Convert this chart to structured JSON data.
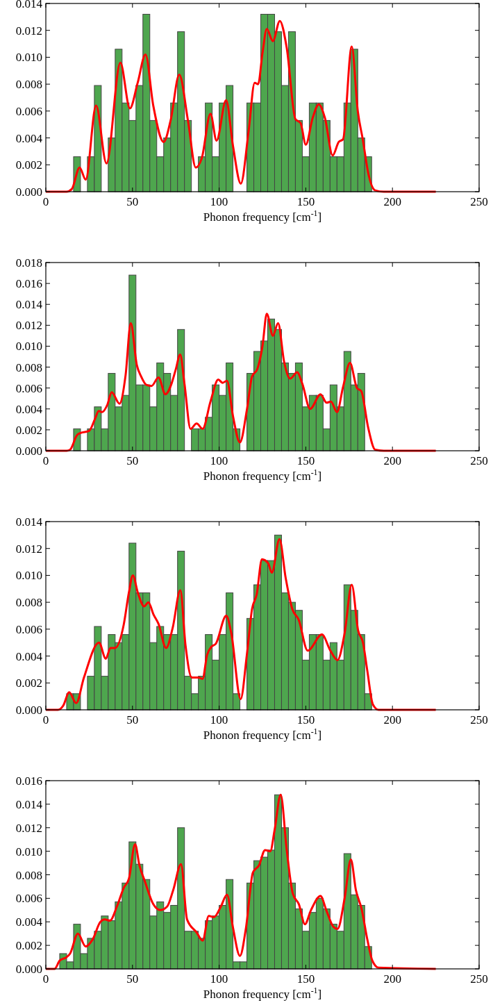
{
  "chart_data": [
    {
      "type": "histogram",
      "xlabel": "Phonon frequency [cm$^{-1}$]",
      "xlim": [
        0,
        250
      ],
      "xticks": [
        0,
        50,
        100,
        150,
        200,
        250
      ],
      "ylim": [
        0,
        0.014
      ],
      "yticks": [
        {
          "value": 0,
          "label": "0.000"
        },
        {
          "value": 0.002,
          "label": "0.002"
        },
        {
          "value": 0.004,
          "label": "0.004"
        },
        {
          "value": 0.006,
          "label": "0.006"
        },
        {
          "value": 0.008,
          "label": "0.008"
        },
        {
          "value": 0.01,
          "label": "0.010"
        },
        {
          "value": 0.012,
          "label": "0.012"
        },
        {
          "value": 0.014,
          "label": "0.014"
        }
      ],
      "series": [
        {
          "color": "#4ea64e",
          "bins": [
            16,
            20,
            24,
            28,
            32,
            36,
            40,
            44,
            48,
            52,
            56,
            60,
            64,
            68,
            72,
            76,
            80,
            84,
            88,
            92,
            96,
            100,
            104,
            108,
            112,
            116,
            120,
            124,
            128,
            132,
            136,
            140,
            144,
            148,
            152,
            156,
            160,
            164,
            168,
            172,
            176,
            180,
            184,
            188
          ],
          "values": [
            0.0026,
            0,
            0.0026,
            0.0079,
            0,
            0.004,
            0.0106,
            0.0066,
            0.0053,
            0.0079,
            0.0132,
            0.0053,
            0.0026,
            0.004,
            0.0066,
            0.0119,
            0.0053,
            0,
            0.0026,
            0.0066,
            0.0026,
            0.0066,
            0.0079,
            0,
            0,
            0.0066,
            0.0066,
            0.0132,
            0.0132,
            0.0119,
            0.0079,
            0.0119,
            0.0053,
            0.0026,
            0.0066,
            0.0066,
            0.0053,
            0.0026,
            0.0026,
            0.0066,
            0.0106,
            0.004,
            0.0026
          ]
        },
        {
          "type": "line",
          "color": "#ff0000",
          "x": [
            0,
            12,
            15,
            19.5,
            23,
            29,
            35,
            43,
            48.5,
            53,
            57.5,
            62,
            68,
            72,
            77,
            82,
            86.5,
            90,
            95,
            98.5,
            104,
            108,
            112.5,
            117,
            120.5,
            122.5,
            125,
            127.5,
            131,
            135,
            139,
            144,
            147,
            150,
            154,
            157.5,
            161,
            165.5,
            169,
            171.5,
            176.5,
            180,
            183,
            186,
            190,
            195,
            225
          ],
          "values": [
            0,
            0,
            0.0002,
            0.0018,
            0.0009,
            0.0064,
            0.0021,
            0.0096,
            0.0062,
            0.0081,
            0.0102,
            0.0064,
            0.0037,
            0.0053,
            0.0087,
            0.0053,
            0.0018,
            0.0025,
            0.0058,
            0.0038,
            0.0068,
            0.0034,
            0.0006,
            0.0045,
            0.0081,
            0.008,
            0.0103,
            0.0121,
            0.0112,
            0.0127,
            0.0107,
            0.0054,
            0.0051,
            0.0035,
            0.0055,
            0.0065,
            0.0055,
            0.0027,
            0.0037,
            0.0039,
            0.0108,
            0.006,
            0.0038,
            0.0014,
            0.0001,
            0,
            0
          ]
        }
      ]
    },
    {
      "type": "histogram",
      "xlabel": "Phonon frequency [cm$^{-1}$]",
      "xlim": [
        0,
        250
      ],
      "xticks": [
        0,
        50,
        100,
        150,
        200,
        250
      ],
      "ylim": [
        0,
        0.018
      ],
      "yticks": [
        {
          "value": 0,
          "label": "0.000"
        },
        {
          "value": 0.002,
          "label": "0.002"
        },
        {
          "value": 0.004,
          "label": "0.004"
        },
        {
          "value": 0.006,
          "label": "0.006"
        },
        {
          "value": 0.008,
          "label": "0.008"
        },
        {
          "value": 0.01,
          "label": "0.010"
        },
        {
          "value": 0.012,
          "label": "0.012"
        },
        {
          "value": 0.014,
          "label": "0.014"
        },
        {
          "value": 0.016,
          "label": "0.016"
        },
        {
          "value": 0.018,
          "label": "0.018"
        }
      ],
      "series": [
        {
          "color": "#4ea64e",
          "bins": [
            16,
            20,
            24,
            28,
            32,
            36,
            40,
            44,
            48,
            52,
            56,
            60,
            64,
            68,
            72,
            76,
            80,
            84,
            88,
            92,
            96,
            100,
            104,
            108,
            112,
            116,
            120,
            124,
            128,
            132,
            136,
            140,
            144,
            148,
            152,
            156,
            160,
            164,
            168,
            172,
            176,
            180,
            184
          ],
          "values": [
            0.0021,
            0,
            0.0021,
            0.0042,
            0.0021,
            0.0074,
            0.0042,
            0.0053,
            0.0168,
            0.0063,
            0.0063,
            0.0042,
            0.0084,
            0.0074,
            0.0053,
            0.0116,
            0,
            0.0021,
            0.0021,
            0.0032,
            0.0063,
            0.0053,
            0.0084,
            0.0021,
            0,
            0.0074,
            0.0095,
            0.0105,
            0.0126,
            0.0116,
            0.0084,
            0.0074,
            0.0084,
            0.0042,
            0.0053,
            0.0053,
            0.0021,
            0.0063,
            0.0042,
            0.0095,
            0.0063,
            0.0074
          ]
        },
        {
          "type": "line",
          "color": "#ff0000",
          "x": [
            0,
            12,
            14,
            18,
            20,
            25,
            28.5,
            30.5,
            32.5,
            35.5,
            38,
            42.5,
            46,
            49,
            52.5,
            55,
            58,
            61,
            65,
            69,
            72.5,
            75,
            77.5,
            80,
            83.5,
            87,
            90.5,
            95,
            99.5,
            102,
            104.5,
            108,
            112,
            116,
            119,
            122,
            125,
            127.5,
            131,
            134,
            137.5,
            141,
            145,
            148,
            152.5,
            158.5,
            162,
            164.5,
            168,
            171.5,
            175.5,
            179.5,
            182,
            186,
            190,
            195,
            225
          ],
          "values": [
            0,
            0,
            0.0001,
            0.0015,
            0.0017,
            0.0019,
            0.0031,
            0.0038,
            0.0037,
            0.0044,
            0.0056,
            0.0045,
            0.0072,
            0.0122,
            0.0082,
            0.0071,
            0.0063,
            0.0062,
            0.007,
            0.0054,
            0.0064,
            0.0078,
            0.0092,
            0.0064,
            0.0021,
            0.0026,
            0.0021,
            0.0047,
            0.0068,
            0.0065,
            0.0067,
            0.0033,
            0.0008,
            0.0039,
            0.0071,
            0.0078,
            0.01,
            0.0131,
            0.011,
            0.0122,
            0.0085,
            0.0069,
            0.0075,
            0.0064,
            0.004,
            0.0054,
            0.0046,
            0.0047,
            0.0037,
            0.0061,
            0.0084,
            0.006,
            0.0057,
            0.0022,
            0.0001,
            0,
            0
          ]
        }
      ]
    },
    {
      "type": "histogram",
      "xlabel": "Phonon frequency [cm$^{-1}$]",
      "xlim": [
        0,
        250
      ],
      "xticks": [
        0,
        50,
        100,
        150,
        200,
        250
      ],
      "ylim": [
        0,
        0.014
      ],
      "yticks": [
        {
          "value": 0,
          "label": "0.000"
        },
        {
          "value": 0.002,
          "label": "0.002"
        },
        {
          "value": 0.004,
          "label": "0.004"
        },
        {
          "value": 0.006,
          "label": "0.006"
        },
        {
          "value": 0.008,
          "label": "0.008"
        },
        {
          "value": 0.01,
          "label": "0.010"
        },
        {
          "value": 0.012,
          "label": "0.012"
        },
        {
          "value": 0.014,
          "label": "0.014"
        }
      ],
      "series": [
        {
          "color": "#4ea64e",
          "bins": [
            12,
            16,
            20,
            24,
            28,
            32,
            36,
            40,
            44,
            48,
            52,
            56,
            60,
            64,
            68,
            72,
            76,
            80,
            84,
            88,
            92,
            96,
            100,
            104,
            108,
            112,
            116,
            120,
            124,
            128,
            132,
            136,
            140,
            144,
            148,
            152,
            156,
            160,
            164,
            168,
            172,
            176,
            180,
            184,
            188
          ],
          "values": [
            0.0012,
            0.0012,
            0,
            0.0025,
            0.0062,
            0.0025,
            0.0056,
            0.005,
            0.0056,
            0.0124,
            0.0087,
            0.0087,
            0.005,
            0.0062,
            0.0056,
            0.0056,
            0.0118,
            0.0025,
            0.0012,
            0.0025,
            0.0056,
            0.0037,
            0.0056,
            0.0087,
            0.0012,
            0,
            0.0068,
            0.0093,
            0.0111,
            0.0111,
            0.013,
            0.0087,
            0.008,
            0.0074,
            0.0037,
            0.0056,
            0.0056,
            0.0037,
            0.005,
            0.0037,
            0.0093,
            0.0074,
            0.0056,
            0.0012
          ]
        },
        {
          "type": "line",
          "color": "#ff0000",
          "x": [
            0,
            7,
            10,
            13.5,
            17.5,
            22,
            30.7,
            34.6,
            37.3,
            40,
            44.9,
            47.9,
            50.2,
            53.1,
            56.7,
            59.2,
            62.1,
            65,
            69.4,
            73.2,
            77.6,
            80.6,
            84.2,
            88.2,
            90.4,
            93.1,
            95.6,
            98,
            104.1,
            107,
            112.4,
            116,
            119,
            121.7,
            124.7,
            128.3,
            130.4,
            134.8,
            138.4,
            142.2,
            145.9,
            151.1,
            159.3,
            164.2,
            168.3,
            172.4,
            176.5,
            180.2,
            183,
            185.5,
            188.7,
            192,
            225
          ],
          "values": [
            0,
            0,
            0.0003,
            0.0013,
            0.0005,
            0.0024,
            0.005,
            0.0038,
            0.0046,
            0.0046,
            0.0063,
            0.0087,
            0.01,
            0.0087,
            0.0077,
            0.008,
            0.0071,
            0.0064,
            0.0046,
            0.0061,
            0.0089,
            0.0048,
            0.0024,
            0.0024,
            0.0023,
            0.0041,
            0.0047,
            0.0049,
            0.007,
            0.0057,
            0.0008,
            0.0041,
            0.0075,
            0.0086,
            0.0112,
            0.0109,
            0.0102,
            0.0127,
            0.0098,
            0.0075,
            0.0067,
            0.0044,
            0.0056,
            0.0044,
            0.0037,
            0.0057,
            0.0093,
            0.0059,
            0.005,
            0.0029,
            0.0004,
            0,
            0
          ]
        }
      ]
    },
    {
      "type": "histogram",
      "xlabel": "Phonon frequency [cm$^{-1}$]",
      "xlim": [
        0,
        250
      ],
      "xticks": [
        0,
        50,
        100,
        150,
        200,
        250
      ],
      "ylim": [
        0,
        0.016
      ],
      "yticks": [
        {
          "value": 0,
          "label": "0.000"
        },
        {
          "value": 0.002,
          "label": "0.002"
        },
        {
          "value": 0.004,
          "label": "0.004"
        },
        {
          "value": 0.006,
          "label": "0.006"
        },
        {
          "value": 0.008,
          "label": "0.008"
        },
        {
          "value": 0.01,
          "label": "0.010"
        },
        {
          "value": 0.012,
          "label": "0.012"
        },
        {
          "value": 0.014,
          "label": "0.014"
        },
        {
          "value": 0.016,
          "label": "0.016"
        }
      ],
      "series": [
        {
          "color": "#4ea64e",
          "bins": [
            8,
            12,
            16,
            20,
            24,
            28,
            32,
            36,
            40,
            44,
            48,
            52,
            56,
            60,
            64,
            68,
            72,
            76,
            80,
            84,
            88,
            92,
            96,
            100,
            104,
            108,
            112,
            116,
            120,
            124,
            128,
            132,
            136,
            140,
            144,
            148,
            152,
            156,
            160,
            164,
            168,
            172,
            176,
            180,
            184,
            188
          ],
          "values": [
            0.0013,
            0.0006,
            0.0038,
            0.0013,
            0.0026,
            0.0032,
            0.0045,
            0.0041,
            0.0057,
            0.0073,
            0.0108,
            0.0089,
            0.0076,
            0.0045,
            0.0057,
            0.0048,
            0.0054,
            0.012,
            0.0032,
            0.0032,
            0.0026,
            0.0041,
            0.0045,
            0.0054,
            0.0076,
            0.0006,
            0.0006,
            0.0073,
            0.0092,
            0.0095,
            0.0101,
            0.0148,
            0.012,
            0.0073,
            0.0051,
            0.0032,
            0.0048,
            0.006,
            0.0051,
            0.0038,
            0.0032,
            0.0098,
            0.0063,
            0.0054,
            0.0019
          ]
        },
        {
          "type": "line",
          "color": "#ff0000",
          "x": [
            0,
            5,
            8,
            12,
            14,
            18.5,
            23,
            27,
            31.5,
            34,
            37,
            41,
            45,
            48,
            51.5,
            54,
            57,
            62,
            66,
            70,
            73.5,
            78,
            81.5,
            87,
            90.5,
            94,
            97,
            101,
            104.5,
            108,
            112,
            115.5,
            119.5,
            123,
            126.5,
            129.5,
            132,
            135.5,
            139,
            142.5,
            146,
            149.5,
            153,
            158.5,
            161.8,
            165.8,
            168.3,
            172.4,
            176,
            178.9,
            182.2,
            185.5,
            188.4,
            192,
            225
          ],
          "values": [
            0,
            0,
            0.0007,
            0.001,
            0.0013,
            0.003,
            0.0019,
            0.0025,
            0.004,
            0.0042,
            0.0041,
            0.0053,
            0.0069,
            0.0077,
            0.0106,
            0.0088,
            0.0075,
            0.0055,
            0.005,
            0.0053,
            0.0067,
            0.0089,
            0.0042,
            0.0031,
            0.0024,
            0.0045,
            0.0044,
            0.0053,
            0.0063,
            0.0035,
            0.0011,
            0.0035,
            0.0082,
            0.0088,
            0.0101,
            0.01,
            0.0118,
            0.0148,
            0.0101,
            0.0064,
            0.0055,
            0.0038,
            0.005,
            0.0062,
            0.005,
            0.0036,
            0.0034,
            0.006,
            0.0093,
            0.0067,
            0.0051,
            0.0025,
            0.0007,
            0.0001,
            0
          ]
        }
      ]
    }
  ]
}
